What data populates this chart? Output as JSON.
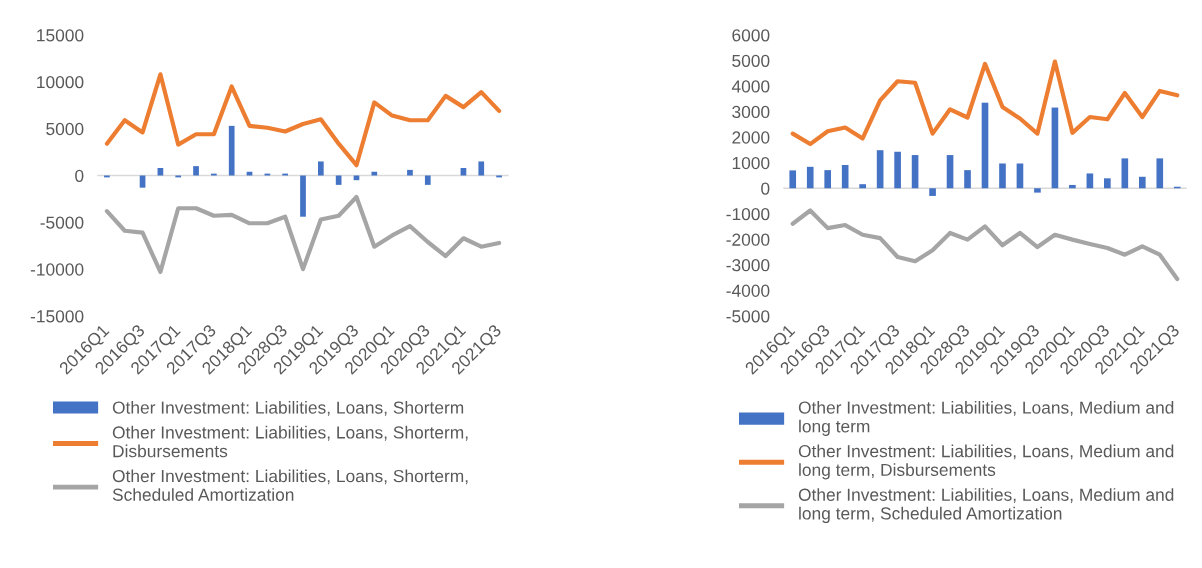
{
  "chart_data": [
    {
      "type": "bar",
      "categories": [
        "2016Q1",
        null,
        "2016Q3",
        null,
        "2017Q1",
        null,
        "2017Q3",
        null,
        "2018Q1",
        null,
        "2028Q3",
        null,
        "2019Q1",
        null,
        "2019Q3",
        null,
        "2020Q1",
        null,
        "2020Q3",
        null,
        "2021Q1",
        null,
        "2021Q3"
      ],
      "series": [
        {
          "name": "Other Investment: Liabilities, Loans, Shorterm",
          "color": "#4472c4",
          "values": [
            -200,
            null,
            -1300,
            800,
            -200,
            1000,
            200,
            5300,
            400,
            200,
            200,
            -4400,
            1500,
            -1000,
            -500,
            400,
            null,
            600,
            -1000,
            null,
            800,
            1500,
            -200
          ]
        },
        {
          "name": "Other Investment: Liabilities, Loans, Shorterm, Disbursements",
          "type": "line",
          "color": "#ed7d31",
          "values": [
            3400,
            5900,
            4600,
            10800,
            3300,
            4400,
            4400,
            9500,
            5300,
            5100,
            4700,
            5500,
            6000,
            3400,
            1100,
            7800,
            6400,
            5900,
            5900,
            8500,
            7300,
            8900,
            6900
          ]
        },
        {
          "name": "Other Investment: Liabilities, Loans, Shorterm, Scheduled Amortization",
          "type": "line",
          "color": "#a5a5a5",
          "values": [
            -3800,
            -5900,
            -6100,
            -10300,
            -3500,
            -3500,
            -4300,
            -4200,
            -5100,
            -5100,
            -4400,
            -10000,
            -4700,
            -4300,
            -2300,
            -7600,
            -6400,
            -5400,
            -7100,
            -8600,
            -6700,
            -7600,
            -7200
          ]
        }
      ],
      "ylim": [
        -15000,
        15000
      ],
      "yticks": [
        -15000,
        -10000,
        -5000,
        0,
        5000,
        10000,
        15000
      ],
      "legend": "bottom"
    },
    {
      "type": "bar",
      "categories": [
        "2016Q1",
        null,
        "2016Q3",
        null,
        "2017Q1",
        null,
        "2017Q3",
        null,
        "2018Q1",
        null,
        "2028Q3",
        null,
        "2019Q1",
        null,
        "2019Q3",
        null,
        "2020Q1",
        null,
        "2020Q3",
        null,
        "2021Q1",
        null,
        "2021Q3"
      ],
      "series": [
        {
          "name": "Other Investment: Liabilities, Loans, Medium and long term",
          "color": "#4472c4",
          "values": [
            700,
            840,
            710,
            910,
            160,
            1490,
            1430,
            1300,
            -300,
            1300,
            710,
            3350,
            970,
            970,
            -170,
            3160,
            130,
            580,
            390,
            1170,
            450,
            1170,
            60
          ]
        },
        {
          "name": "Other Investment: Liabilities, Loans, Medium and long term, Disbursements",
          "type": "line",
          "color": "#ed7d31",
          "values": [
            2140,
            1730,
            2230,
            2380,
            1950,
            3440,
            4190,
            4130,
            2140,
            3090,
            2770,
            4870,
            3180,
            2730,
            2140,
            4960,
            2170,
            2790,
            2700,
            3730,
            2790,
            3810,
            3640
          ]
        },
        {
          "name": "Other Investment: Liabilities, Loans, Medium and long term, Scheduled Amortization",
          "type": "line",
          "color": "#a5a5a5",
          "values": [
            -1390,
            -870,
            -1560,
            -1440,
            -1820,
            -1950,
            -2690,
            -2860,
            -2430,
            -1750,
            -2010,
            -1490,
            -2230,
            -1750,
            -2300,
            -1820,
            -2010,
            -2180,
            -2340,
            -2600,
            -2270,
            -2600,
            -3550
          ]
        }
      ],
      "ylim": [
        -5000,
        6000
      ],
      "yticks": [
        -5000,
        -4000,
        -3000,
        -2000,
        -1000,
        0,
        1000,
        2000,
        3000,
        4000,
        5000,
        6000
      ],
      "legend": "bottom"
    }
  ]
}
